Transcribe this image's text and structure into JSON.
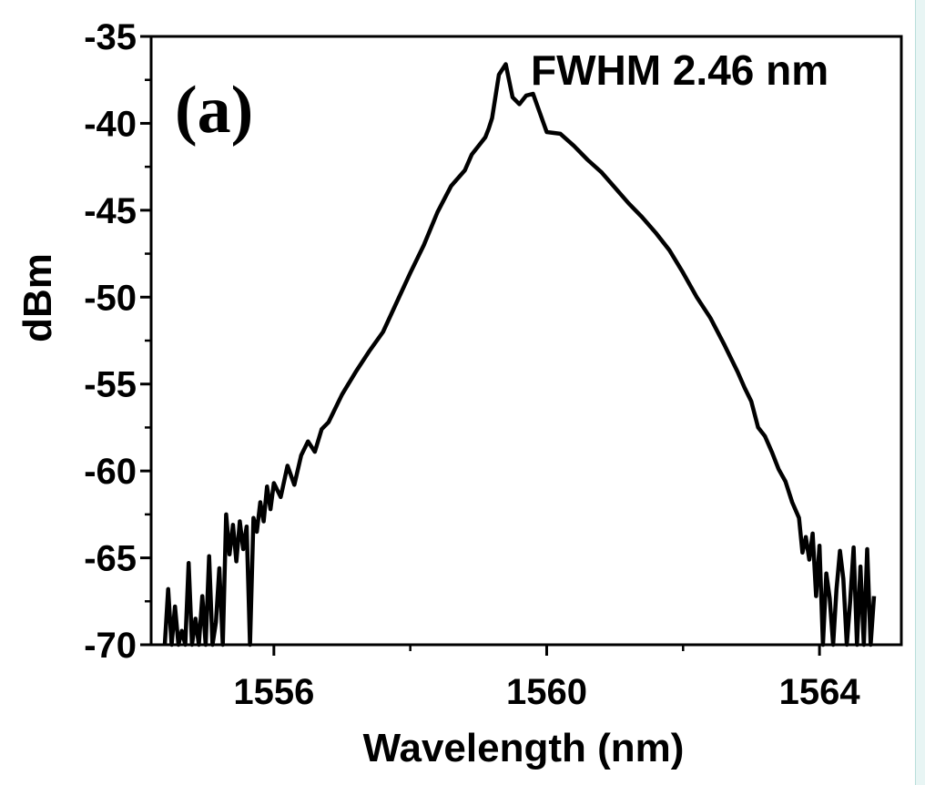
{
  "chart_data": {
    "type": "line",
    "panel_label": "(a)",
    "annotation": "FWHM 2.46 nm",
    "xlabel": "Wavelength (nm)",
    "ylabel": "dBm",
    "xlim": [
      1554.2,
      1565.2
    ],
    "ylim": [
      -70,
      -35
    ],
    "xticks": [
      1556,
      1560,
      1564
    ],
    "xticks_minor": [
      1558,
      1562
    ],
    "yticks": [
      -35,
      -40,
      -45,
      -50,
      -55,
      -60,
      -65,
      -70
    ],
    "grid": false,
    "line_color": "#000000",
    "series": [
      {
        "x": [
          1554.4,
          1554.45,
          1554.5,
          1554.55,
          1554.6,
          1554.65,
          1554.7,
          1554.75,
          1554.8,
          1554.85,
          1554.9,
          1554.95,
          1555.0,
          1555.05,
          1555.1,
          1555.15,
          1555.2,
          1555.25,
          1555.3,
          1555.35,
          1555.4,
          1555.45,
          1555.5,
          1555.55,
          1555.6,
          1555.65,
          1555.7,
          1555.75,
          1555.8,
          1555.85,
          1555.9,
          1555.95,
          1556.0,
          1556.1,
          1556.2,
          1556.3,
          1556.4,
          1556.5,
          1556.6,
          1556.7,
          1556.8,
          1556.9,
          1557.0,
          1557.2,
          1557.4,
          1557.6,
          1557.8,
          1558.0,
          1558.2,
          1558.4,
          1558.6,
          1558.8,
          1558.9,
          1559.0,
          1559.1,
          1559.15,
          1559.2,
          1559.3,
          1559.4,
          1559.5,
          1559.6,
          1559.7,
          1559.8,
          1560.0,
          1560.2,
          1560.4,
          1560.6,
          1560.8,
          1561.0,
          1561.2,
          1561.4,
          1561.6,
          1561.8,
          1562.0,
          1562.2,
          1562.4,
          1562.6,
          1562.8,
          1562.9,
          1563.0,
          1563.1,
          1563.2,
          1563.3,
          1563.4,
          1563.5,
          1563.6,
          1563.7,
          1563.75,
          1563.8,
          1563.85,
          1563.9,
          1563.95,
          1564.0,
          1564.05,
          1564.1,
          1564.15,
          1564.2,
          1564.25,
          1564.3,
          1564.35,
          1564.4,
          1564.45,
          1564.5,
          1564.55,
          1564.6,
          1564.65,
          1564.7,
          1564.75,
          1564.8
        ],
        "y": [
          -70,
          -66.8,
          -70,
          -67.8,
          -70,
          -69.2,
          -70,
          -65.3,
          -70,
          -68.5,
          -70,
          -67.2,
          -70,
          -64.9,
          -70,
          -68.7,
          -65.6,
          -70,
          -62.5,
          -64.8,
          -63.1,
          -65.2,
          -62.9,
          -64.5,
          -63.2,
          -70,
          -62.7,
          -63.5,
          -61.8,
          -62.9,
          -60.9,
          -62.2,
          -60.7,
          -61.5,
          -59.7,
          -60.8,
          -59.1,
          -58.3,
          -58.9,
          -57.6,
          -57.2,
          -56.4,
          -55.6,
          -54.3,
          -53.1,
          -52.0,
          -50.3,
          -48.6,
          -47.0,
          -45.1,
          -43.6,
          -42.7,
          -41.8,
          -41.3,
          -40.8,
          -40.3,
          -39.7,
          -37.2,
          -36.6,
          -38.5,
          -38.9,
          -38.4,
          -38.3,
          -40.5,
          -40.6,
          -41.3,
          -42.1,
          -42.8,
          -43.7,
          -44.6,
          -45.4,
          -46.3,
          -47.3,
          -48.6,
          -50.0,
          -51.2,
          -52.7,
          -54.3,
          -55.2,
          -56.0,
          -57.5,
          -58.0,
          -58.9,
          -59.9,
          -60.6,
          -61.8,
          -62.7,
          -64.7,
          -63.8,
          -65.1,
          -63.6,
          -67.2,
          -64.3,
          -70,
          -65.9,
          -67.3,
          -70,
          -66.8,
          -64.6,
          -66.2,
          -70,
          -67.5,
          -64.4,
          -70,
          -65.5,
          -70,
          -64.5,
          -70,
          -67.2
        ]
      }
    ]
  }
}
